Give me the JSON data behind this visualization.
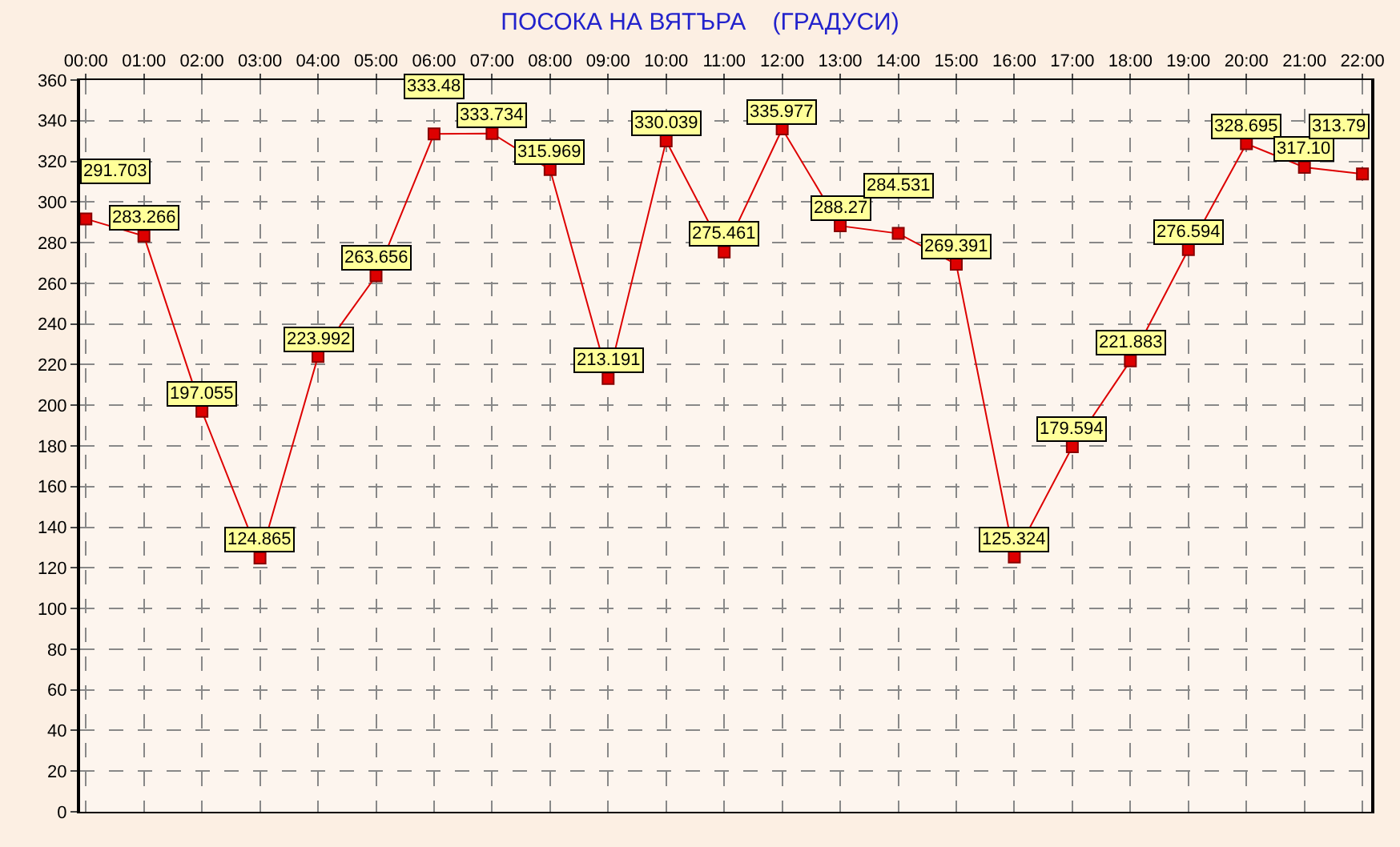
{
  "chart_data": {
    "type": "line",
    "title": "ПОСОКА НА ВЯТЪРА    (ГРАДУСИ)",
    "categories": [
      "00:00",
      "01:00",
      "02:00",
      "03:00",
      "04:00",
      "05:00",
      "06:00",
      "07:00",
      "08:00",
      "09:00",
      "10:00",
      "11:00",
      "12:00",
      "13:00",
      "14:00",
      "15:00",
      "16:00",
      "17:00",
      "18:00",
      "19:00",
      "20:00",
      "21:00",
      "22:00"
    ],
    "series": [
      {
        "color": "#dd0000",
        "values": [
          291.703,
          283.266,
          197.055,
          124.865,
          223.992,
          263.656,
          333.48,
          333.734,
          315.969,
          213.191,
          330.039,
          275.461,
          335.977,
          288.27,
          284.531,
          269.391,
          125.324,
          179.594,
          221.883,
          276.594,
          328.695,
          317.1,
          313.79
        ],
        "value_labels": [
          "291.703",
          "283.266",
          "197.055",
          "124.865",
          "223.992",
          "263.656",
          "333.48",
          "333.734",
          "315.969",
          "213.191",
          "330.039",
          "275.461",
          "335.977",
          "288.27",
          "284.531",
          "269.391",
          "125.324",
          "179.594",
          "221.883",
          "276.594",
          "328.695",
          "317.10",
          "313.79"
        ]
      }
    ],
    "ylim": [
      0,
      360
    ],
    "yticks": [
      0,
      20,
      40,
      60,
      80,
      100,
      120,
      140,
      160,
      180,
      200,
      220,
      240,
      260,
      280,
      300,
      320,
      340,
      360
    ],
    "grid": true,
    "marker": "square",
    "line_style": "solid",
    "legend": false
  }
}
